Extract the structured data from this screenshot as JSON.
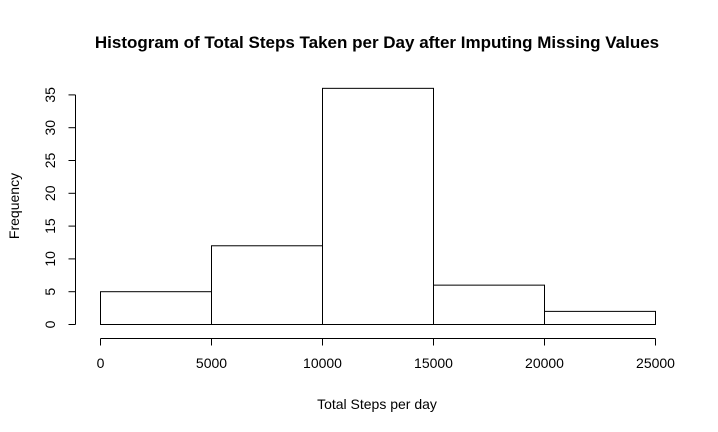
{
  "chart_data": {
    "type": "bar",
    "title": "Histogram of Total Steps Taken per Day after Imputing Missing Values",
    "xlabel": "Total Steps per day",
    "ylabel": "Frequency",
    "bins": [
      {
        "start": 0,
        "end": 5000,
        "count": 5
      },
      {
        "start": 5000,
        "end": 10000,
        "count": 12
      },
      {
        "start": 10000,
        "end": 15000,
        "count": 36
      },
      {
        "start": 15000,
        "end": 20000,
        "count": 6
      },
      {
        "start": 20000,
        "end": 25000,
        "count": 2
      }
    ],
    "xlim": [
      0,
      25000
    ],
    "ylim": [
      0,
      36
    ],
    "xticks": [
      0,
      5000,
      10000,
      15000,
      20000,
      25000
    ],
    "yticks": [
      0,
      5,
      10,
      15,
      20,
      25,
      30,
      35
    ],
    "grid": false,
    "bar_fill": "#ffffff",
    "bar_stroke": "#000000"
  }
}
